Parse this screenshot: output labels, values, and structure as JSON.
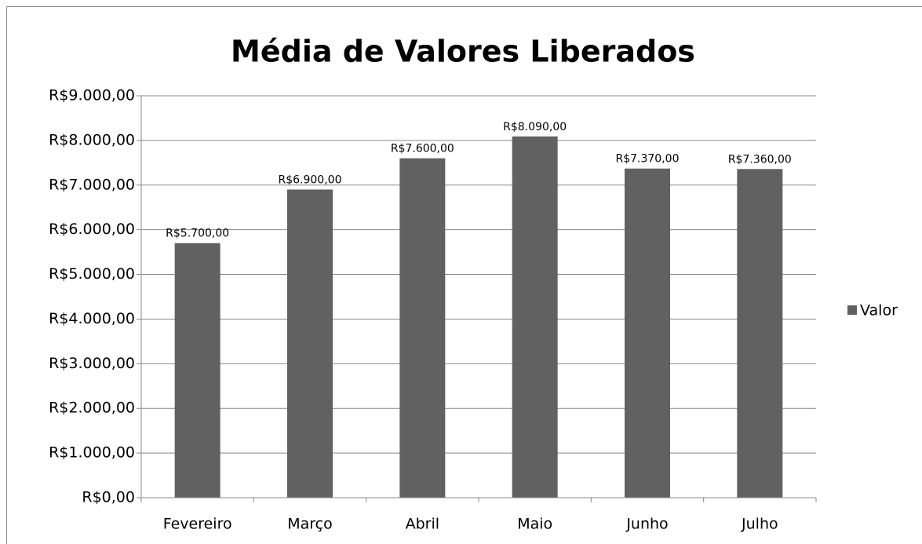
{
  "chart_data": {
    "type": "bar",
    "title": "Média de Valores Liberados",
    "categories": [
      "Fevereiro",
      "Março",
      "Abril",
      "Maio",
      "Junho",
      "Julho"
    ],
    "series": [
      {
        "name": "Valor",
        "color": "#616161",
        "values": [
          5700,
          6900,
          7600,
          8090,
          7370,
          7360
        ],
        "value_labels": [
          "R$5.700,00",
          "R$6.900,00",
          "R$7.600,00",
          "R$8.090,00",
          "R$7.370,00",
          "R$7.360,00"
        ]
      }
    ],
    "ylim": [
      0,
      9000
    ],
    "yticks": [
      {
        "value": 0,
        "label": "R$0,00"
      },
      {
        "value": 1000,
        "label": "R$1.000,00"
      },
      {
        "value": 2000,
        "label": "R$2.000,00"
      },
      {
        "value": 3000,
        "label": "R$3.000,00"
      },
      {
        "value": 4000,
        "label": "R$4.000,00"
      },
      {
        "value": 5000,
        "label": "R$5.000,00"
      },
      {
        "value": 6000,
        "label": "R$6.000,00"
      },
      {
        "value": 7000,
        "label": "R$7.000,00"
      },
      {
        "value": 8000,
        "label": "R$8.000,00"
      },
      {
        "value": 9000,
        "label": "R$9.000,00"
      }
    ],
    "grid": true,
    "legend": "right"
  }
}
